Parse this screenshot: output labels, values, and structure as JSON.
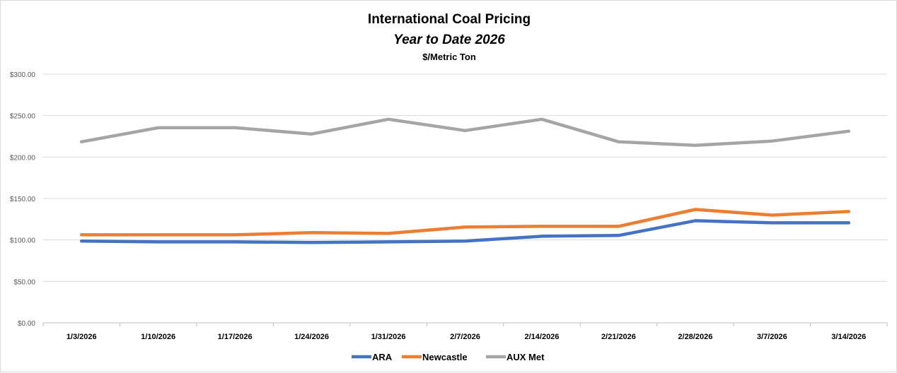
{
  "chart_data": {
    "type": "line",
    "title": "International Coal Pricing",
    "subtitle": "Year to Date 2026",
    "unit_label": "$/Metric Ton",
    "xlabel": "",
    "ylabel": "",
    "categories": [
      "1/3/2026",
      "1/10/2026",
      "1/17/2026",
      "1/24/2026",
      "1/31/2026",
      "2/7/2026",
      "2/14/2026",
      "2/21/2026",
      "2/28/2026",
      "3/7/2026",
      "3/14/2026"
    ],
    "ylim": [
      0,
      300
    ],
    "yticks": [
      0,
      50,
      100,
      150,
      200,
      250,
      300
    ],
    "ytick_labels": [
      "$0.00",
      "$50.00",
      "$100.00",
      "$150.00",
      "$200.00",
      "$250.00",
      "$300.00"
    ],
    "grid": true,
    "legend_position": "bottom",
    "series": [
      {
        "name": "ARA",
        "color": "#4472c4",
        "values": [
          98.6,
          97.7,
          97.7,
          96.9,
          97.7,
          98.6,
          104.5,
          105.4,
          123.2,
          120.7,
          120.7
        ]
      },
      {
        "name": "Newcastle",
        "color": "#ed7d31",
        "values": [
          106.2,
          106.2,
          106.2,
          108.8,
          107.9,
          115.6,
          116.4,
          116.4,
          136.8,
          130.0,
          134.3
        ]
      },
      {
        "name": "AUX Met",
        "color": "#a5a5a5",
        "values": [
          218.4,
          235.4,
          235.4,
          227.8,
          245.6,
          232.0,
          245.6,
          218.4,
          214.2,
          219.3,
          231.2
        ]
      }
    ]
  }
}
